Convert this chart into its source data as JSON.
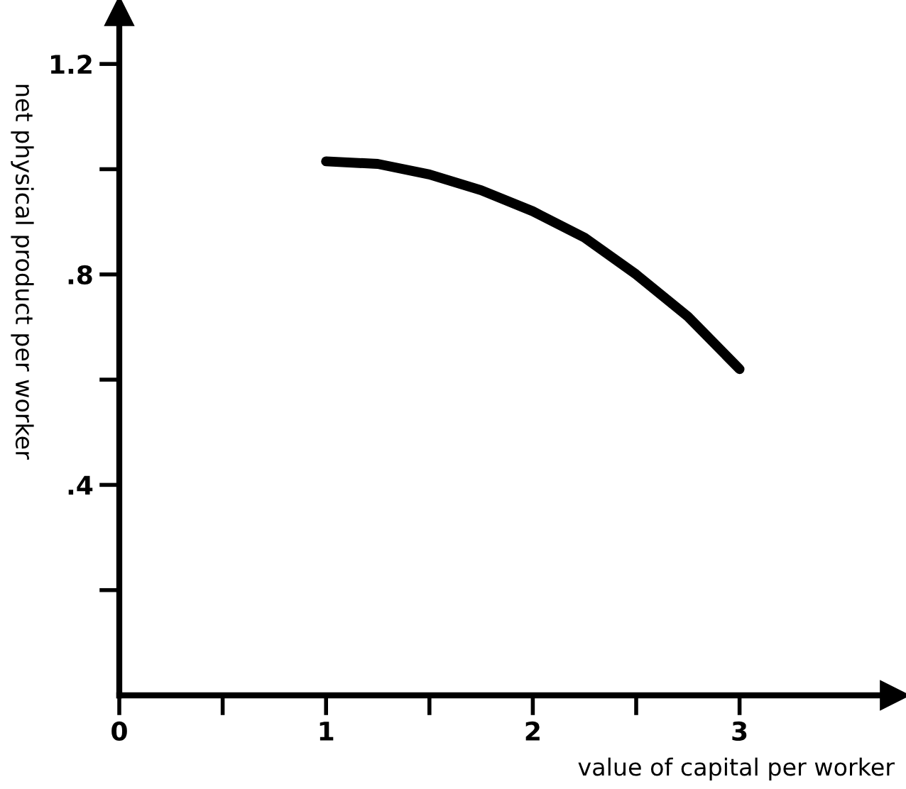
{
  "chart_data": {
    "type": "line",
    "xlabel": "value of capital per worker",
    "ylabel": "net physical product per worker",
    "x": [
      1,
      1.25,
      1.5,
      1.75,
      2,
      2.25,
      2.5,
      2.75,
      3
    ],
    "series": [
      {
        "color": "#000000",
        "values": [
          1.015,
          1.01,
          0.99,
          0.96,
          0.92,
          0.87,
          0.8,
          0.72,
          0.62
        ]
      }
    ],
    "xlim": [
      0,
      3.75
    ],
    "ylim": [
      0,
      1.3
    ],
    "xticks": [
      {
        "value": 0,
        "label": "0"
      },
      {
        "value": 0.5,
        "label": null
      },
      1,
      {
        "value": 1.5,
        "label": null
      },
      2,
      {
        "value": 2.5,
        "label": null
      },
      3
    ],
    "yticks": [
      {
        "value": 0.2,
        "label": null
      },
      {
        "value": 0.4,
        "label": ".4"
      },
      {
        "value": 0.6,
        "label": null
      },
      {
        "value": 0.8,
        "label": ".8"
      },
      {
        "value": 1.0,
        "label": null
      },
      {
        "value": 1.2,
        "label": "1.2"
      }
    ],
    "grid": false,
    "legend": false,
    "marker": "none",
    "line_style": "solid"
  }
}
